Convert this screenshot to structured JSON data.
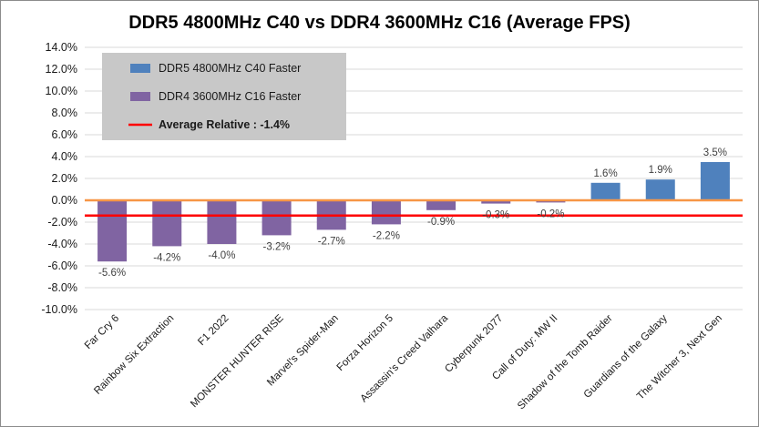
{
  "chart_data": {
    "type": "bar",
    "title": "DDR5 4800MHz C40 vs DDR4 3600MHz C16 (Average FPS)",
    "categories": [
      "Far Cry 6",
      "Rainbow Six Extraction",
      "F1 2022",
      "MONSTER HUNTER RISE",
      "Marvel's Spider-Man",
      "Forza Horizon 5",
      "Assassin's Creed Valhara",
      "Cyberpunk 2077",
      "Call of Duty: MW II",
      "Shadow of the Tomb Raider",
      "Guardians of the Galaxy",
      "The Witcher 3, Next Gen"
    ],
    "values": [
      -5.6,
      -4.2,
      -4.0,
      -3.2,
      -2.7,
      -2.2,
      -0.9,
      -0.3,
      -0.2,
      1.6,
      1.9,
      3.5
    ],
    "data_labels": [
      "-5.6%",
      "-4.2%",
      "-4.0%",
      "-3.2%",
      "-2.7%",
      "-2.2%",
      "-0.9%",
      "-0.3%",
      "-0.2%",
      "1.6%",
      "1.9%",
      "3.5%"
    ],
    "ylim": [
      -10,
      14
    ],
    "ytick_labels": [
      "14.0%",
      "12.0%",
      "10.0%",
      "8.0%",
      "6.0%",
      "4.0%",
      "2.0%",
      "0.0%",
      "-2.0%",
      "-4.0%",
      "-6.0%",
      "-8.0%",
      "-10.0%"
    ],
    "ytick_values": [
      14,
      12,
      10,
      8,
      6,
      4,
      2,
      0,
      -2,
      -4,
      -6,
      -8,
      -10
    ],
    "grid": true,
    "legend_position": "top-left",
    "legend": [
      {
        "label": "DDR5 4800MHz C40 Faster",
        "color": "#4f81bd",
        "kind": "bar"
      },
      {
        "label": "DDR4 3600MHz C16 Faster",
        "color": "#8064a2",
        "kind": "bar"
      },
      {
        "label": "Average Relative : -1.4%",
        "color": "#ff0000",
        "kind": "line"
      }
    ],
    "average_line": -1.4,
    "colors": {
      "positive": "#4f81bd",
      "negative": "#8064a2",
      "average": "#ff0000",
      "zero_line": "#f79646",
      "grid": "#d9d9d9",
      "legend_bg": "#c8c8c8"
    }
  }
}
